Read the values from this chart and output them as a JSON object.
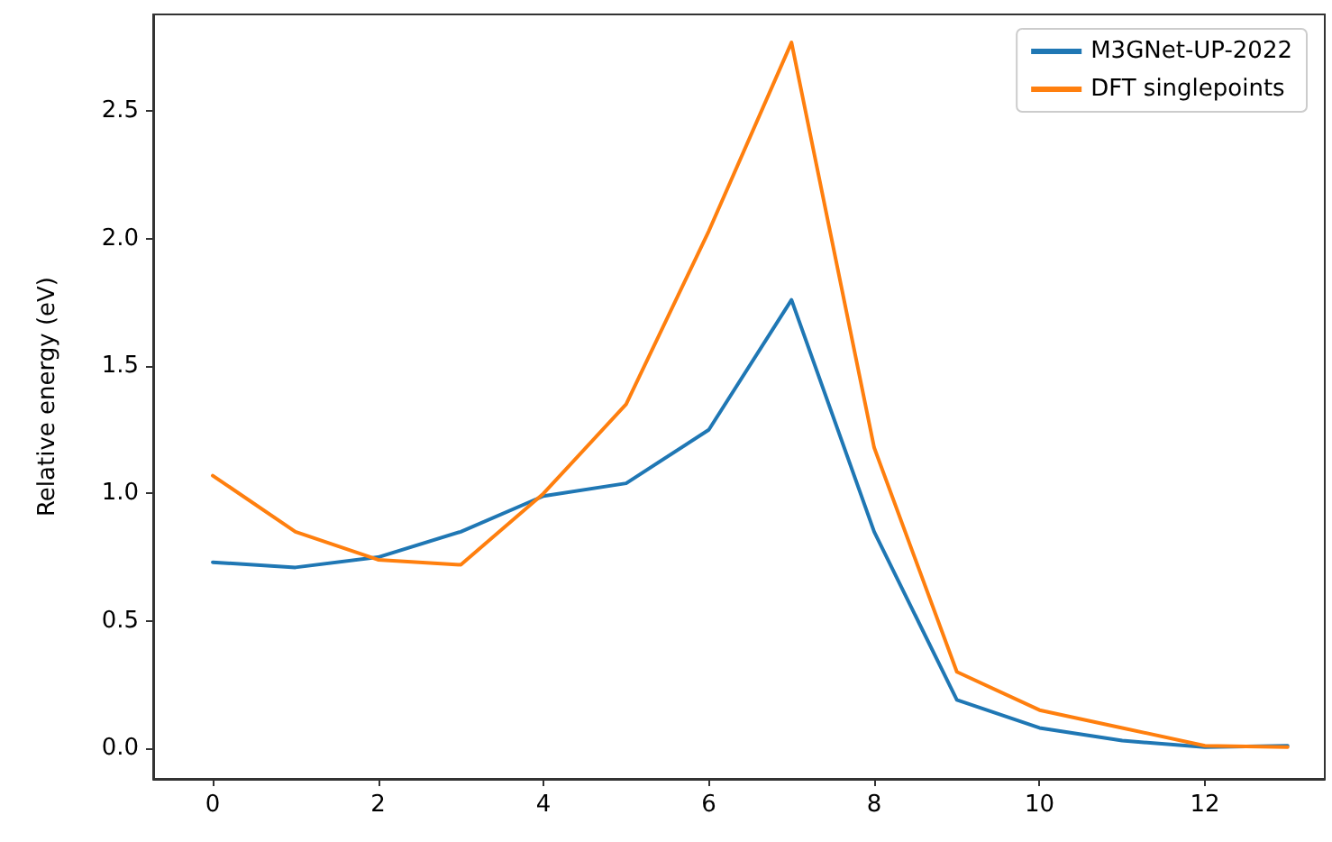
{
  "chart_data": {
    "type": "line",
    "ylabel": "Relative energy (eV)",
    "x": [
      0,
      1,
      2,
      3,
      4,
      5,
      6,
      7,
      8,
      9,
      10,
      11,
      12,
      13
    ],
    "series": [
      {
        "name": "M3GNet-UP-2022",
        "color": "#1f77b4",
        "values": [
          0.73,
          0.71,
          0.75,
          0.85,
          0.99,
          1.04,
          1.25,
          1.76,
          0.85,
          0.19,
          0.08,
          0.03,
          0.005,
          0.01
        ]
      },
      {
        "name": "DFT singlepoints",
        "color": "#ff7f0e",
        "values": [
          1.07,
          0.85,
          0.74,
          0.72,
          1.0,
          1.35,
          2.03,
          2.77,
          1.18,
          0.3,
          0.15,
          0.08,
          0.01,
          0.005
        ]
      }
    ],
    "xlim": [
      -0.72,
      13.45
    ],
    "ylim": [
      -0.12,
      2.88
    ],
    "xticks": [
      0,
      2,
      4,
      6,
      8,
      10,
      12
    ],
    "yticks": [
      {
        "value": 0,
        "label": "0.0"
      },
      0.5,
      {
        "value": 1,
        "label": "1.0"
      },
      1.5,
      {
        "value": 2,
        "label": "2.0"
      },
      2.5
    ],
    "legend": "top right",
    "marker": "none",
    "line_style": "solid"
  }
}
